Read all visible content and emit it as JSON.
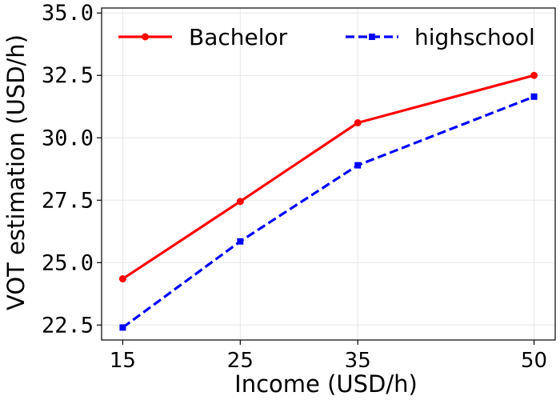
{
  "chart_data": {
    "type": "line",
    "x": [
      15,
      25,
      35,
      50
    ],
    "x_ticks": [
      "15",
      "25",
      "35",
      "50"
    ],
    "y_ticks": [
      "22.5",
      "25.0",
      "27.5",
      "30.0",
      "32.5",
      "35.0"
    ],
    "xlabel": "Income (USD/h)",
    "ylabel": "VOT estimation (USD/h)",
    "xlim": [
      13.2,
      51.8
    ],
    "ylim": [
      21.9,
      35.2
    ],
    "grid": true,
    "legend_position": "top",
    "series": [
      {
        "name": "Bachelor",
        "values": [
          24.35,
          27.45,
          30.6,
          32.5
        ],
        "color": "#ff0000",
        "line_style": "solid",
        "marker": "circle"
      },
      {
        "name": "highschool",
        "values": [
          22.4,
          25.85,
          28.9,
          31.65
        ],
        "color": "#0000ff",
        "line_style": "dashed",
        "marker": "square"
      }
    ]
  }
}
